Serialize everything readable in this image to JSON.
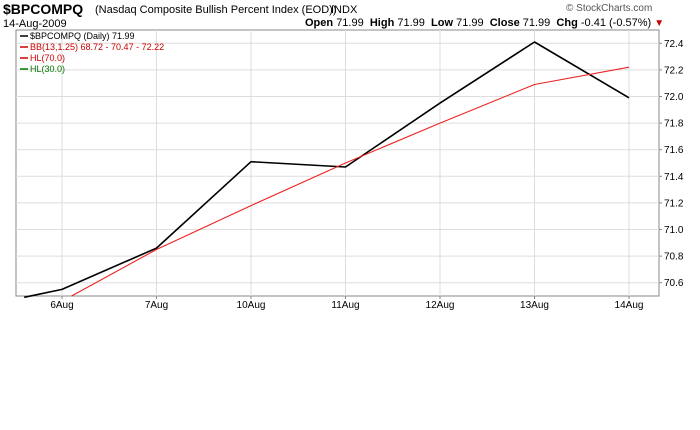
{
  "header": {
    "symbol": "$BPCOMPQ",
    "description": "(Nasdaq Composite Bullish Percent Index (EOD))",
    "exchange": "INDX",
    "date": "14-Aug-2009",
    "open_label": "Open",
    "open": "71.99",
    "high_label": "High",
    "high": "71.99",
    "low_label": "Low",
    "low": "71.99",
    "close_label": "Close",
    "close": "71.99",
    "chg_label": "Chg",
    "chg": "-0.41 (-0.57%)",
    "brand": "© StockCharts.com"
  },
  "legend": [
    {
      "text": "$BPCOMPQ (Daily) 71.99",
      "color": "#000000"
    },
    {
      "text": "BB(13,1.25) 68.72 - 70.47 - 72.22",
      "color": "#cc0000"
    },
    {
      "text": "HL(70.0)",
      "color": "#cc0000"
    },
    {
      "text": "HL(30.0)",
      "color": "#007700"
    }
  ],
  "chart_data": {
    "type": "line",
    "categories": [
      "6Aug",
      "7Aug",
      "10Aug",
      "11Aug",
      "12Aug",
      "13Aug",
      "14Aug"
    ],
    "ylim": [
      70.5,
      72.5
    ],
    "yticks": [
      "70.6",
      "70.8",
      "71.0",
      "71.2",
      "71.4",
      "71.6",
      "71.8",
      "72.0",
      "72.2",
      "72.4"
    ],
    "series": [
      {
        "name": "$BPCOMPQ (Daily) 71.99",
        "color": "#000000",
        "x": [
          -0.4,
          0,
          1,
          2,
          3,
          4,
          5,
          6
        ],
        "values": [
          70.49,
          70.55,
          70.86,
          71.51,
          71.47,
          71.95,
          72.41,
          71.99
        ]
      },
      {
        "name": "BB(13,1.25) 68.72 - 70.47 - 72.22",
        "color": "#ee2222",
        "x": [
          0.1,
          1,
          2,
          3,
          4,
          5,
          6
        ],
        "values": [
          70.5,
          70.85,
          71.18,
          71.5,
          71.8,
          72.09,
          72.22
        ]
      }
    ],
    "grid": true,
    "legend_position": "top-left"
  }
}
